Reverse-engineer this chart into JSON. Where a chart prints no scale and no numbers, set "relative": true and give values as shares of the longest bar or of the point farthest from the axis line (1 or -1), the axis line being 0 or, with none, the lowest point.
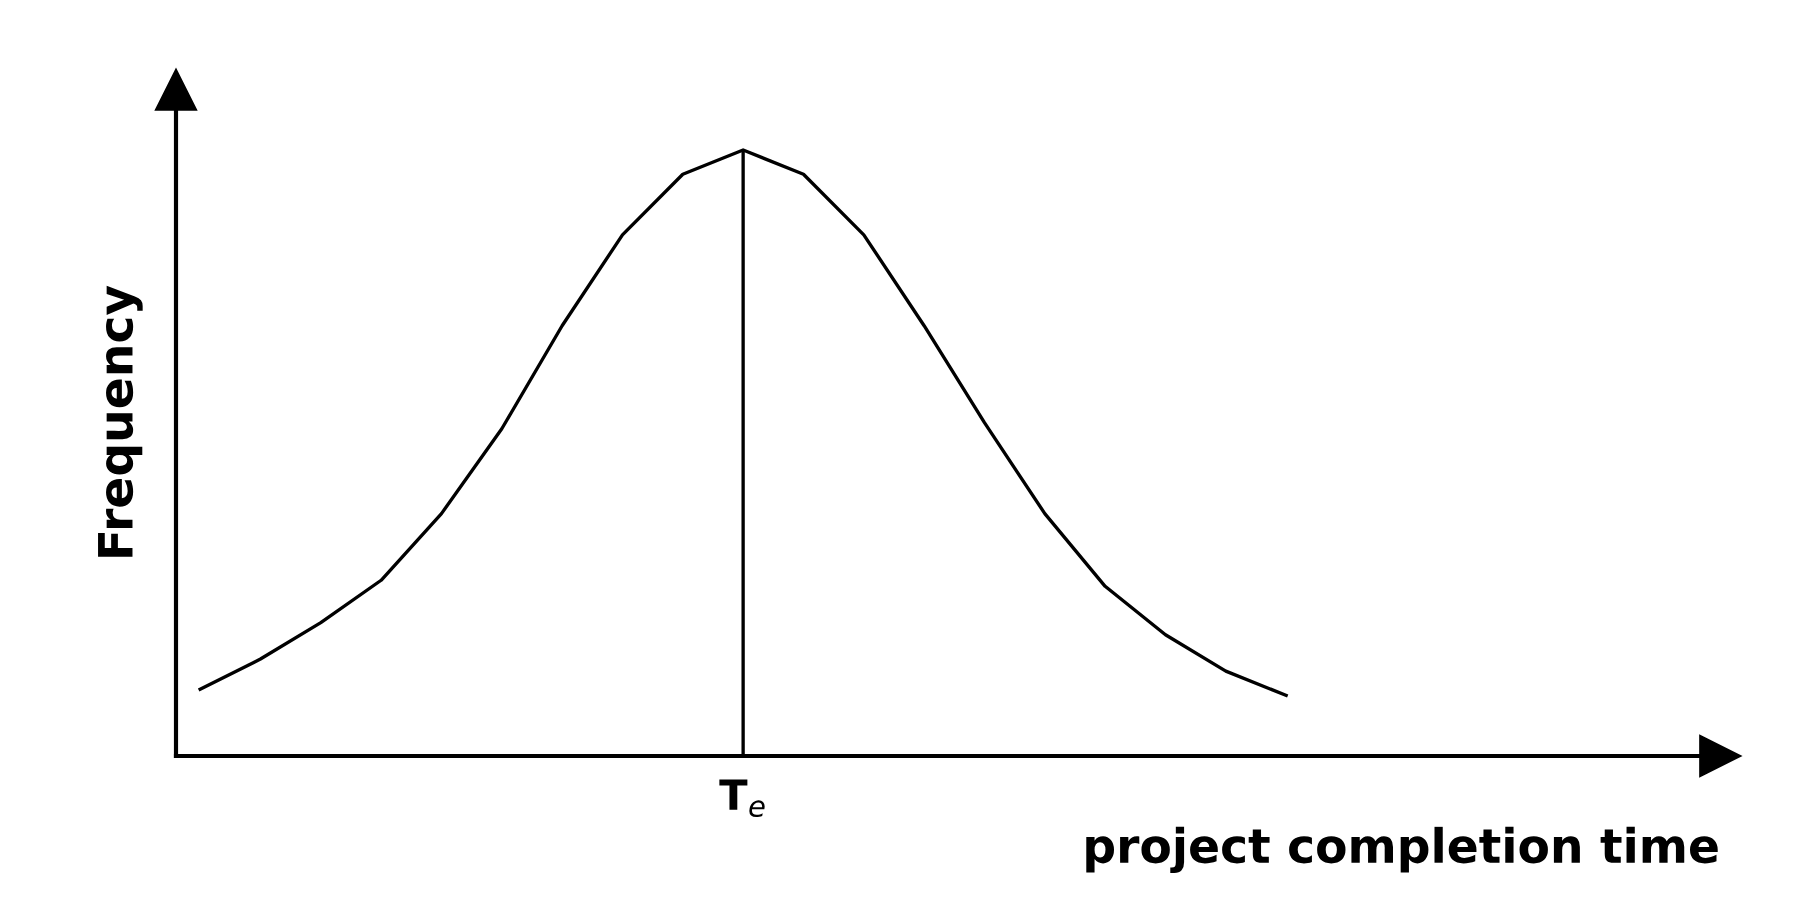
{
  "chart_data": {
    "type": "line",
    "relative": true,
    "xlabel": "project completion time",
    "ylabel": "Frequency",
    "color": "#000000",
    "grid": false,
    "legend": false,
    "marker": "none",
    "line_style": "solid",
    "categories": [
      null,
      null,
      null,
      null,
      null,
      null,
      null,
      null,
      null,
      null,
      null,
      null,
      null,
      null,
      null,
      null,
      null,
      null,
      null
    ],
    "values": [
      0.11,
      0.16,
      0.22,
      0.29,
      0.4,
      0.54,
      0.71,
      0.86,
      0.96,
      1,
      0.96,
      0.86,
      0.71,
      0.55,
      0.4,
      0.28,
      0.2,
      0.14,
      0.1
    ],
    "ref_lines": [
      {
        "axis": "x",
        "label": "T$_{e}$"
      }
    ]
  }
}
